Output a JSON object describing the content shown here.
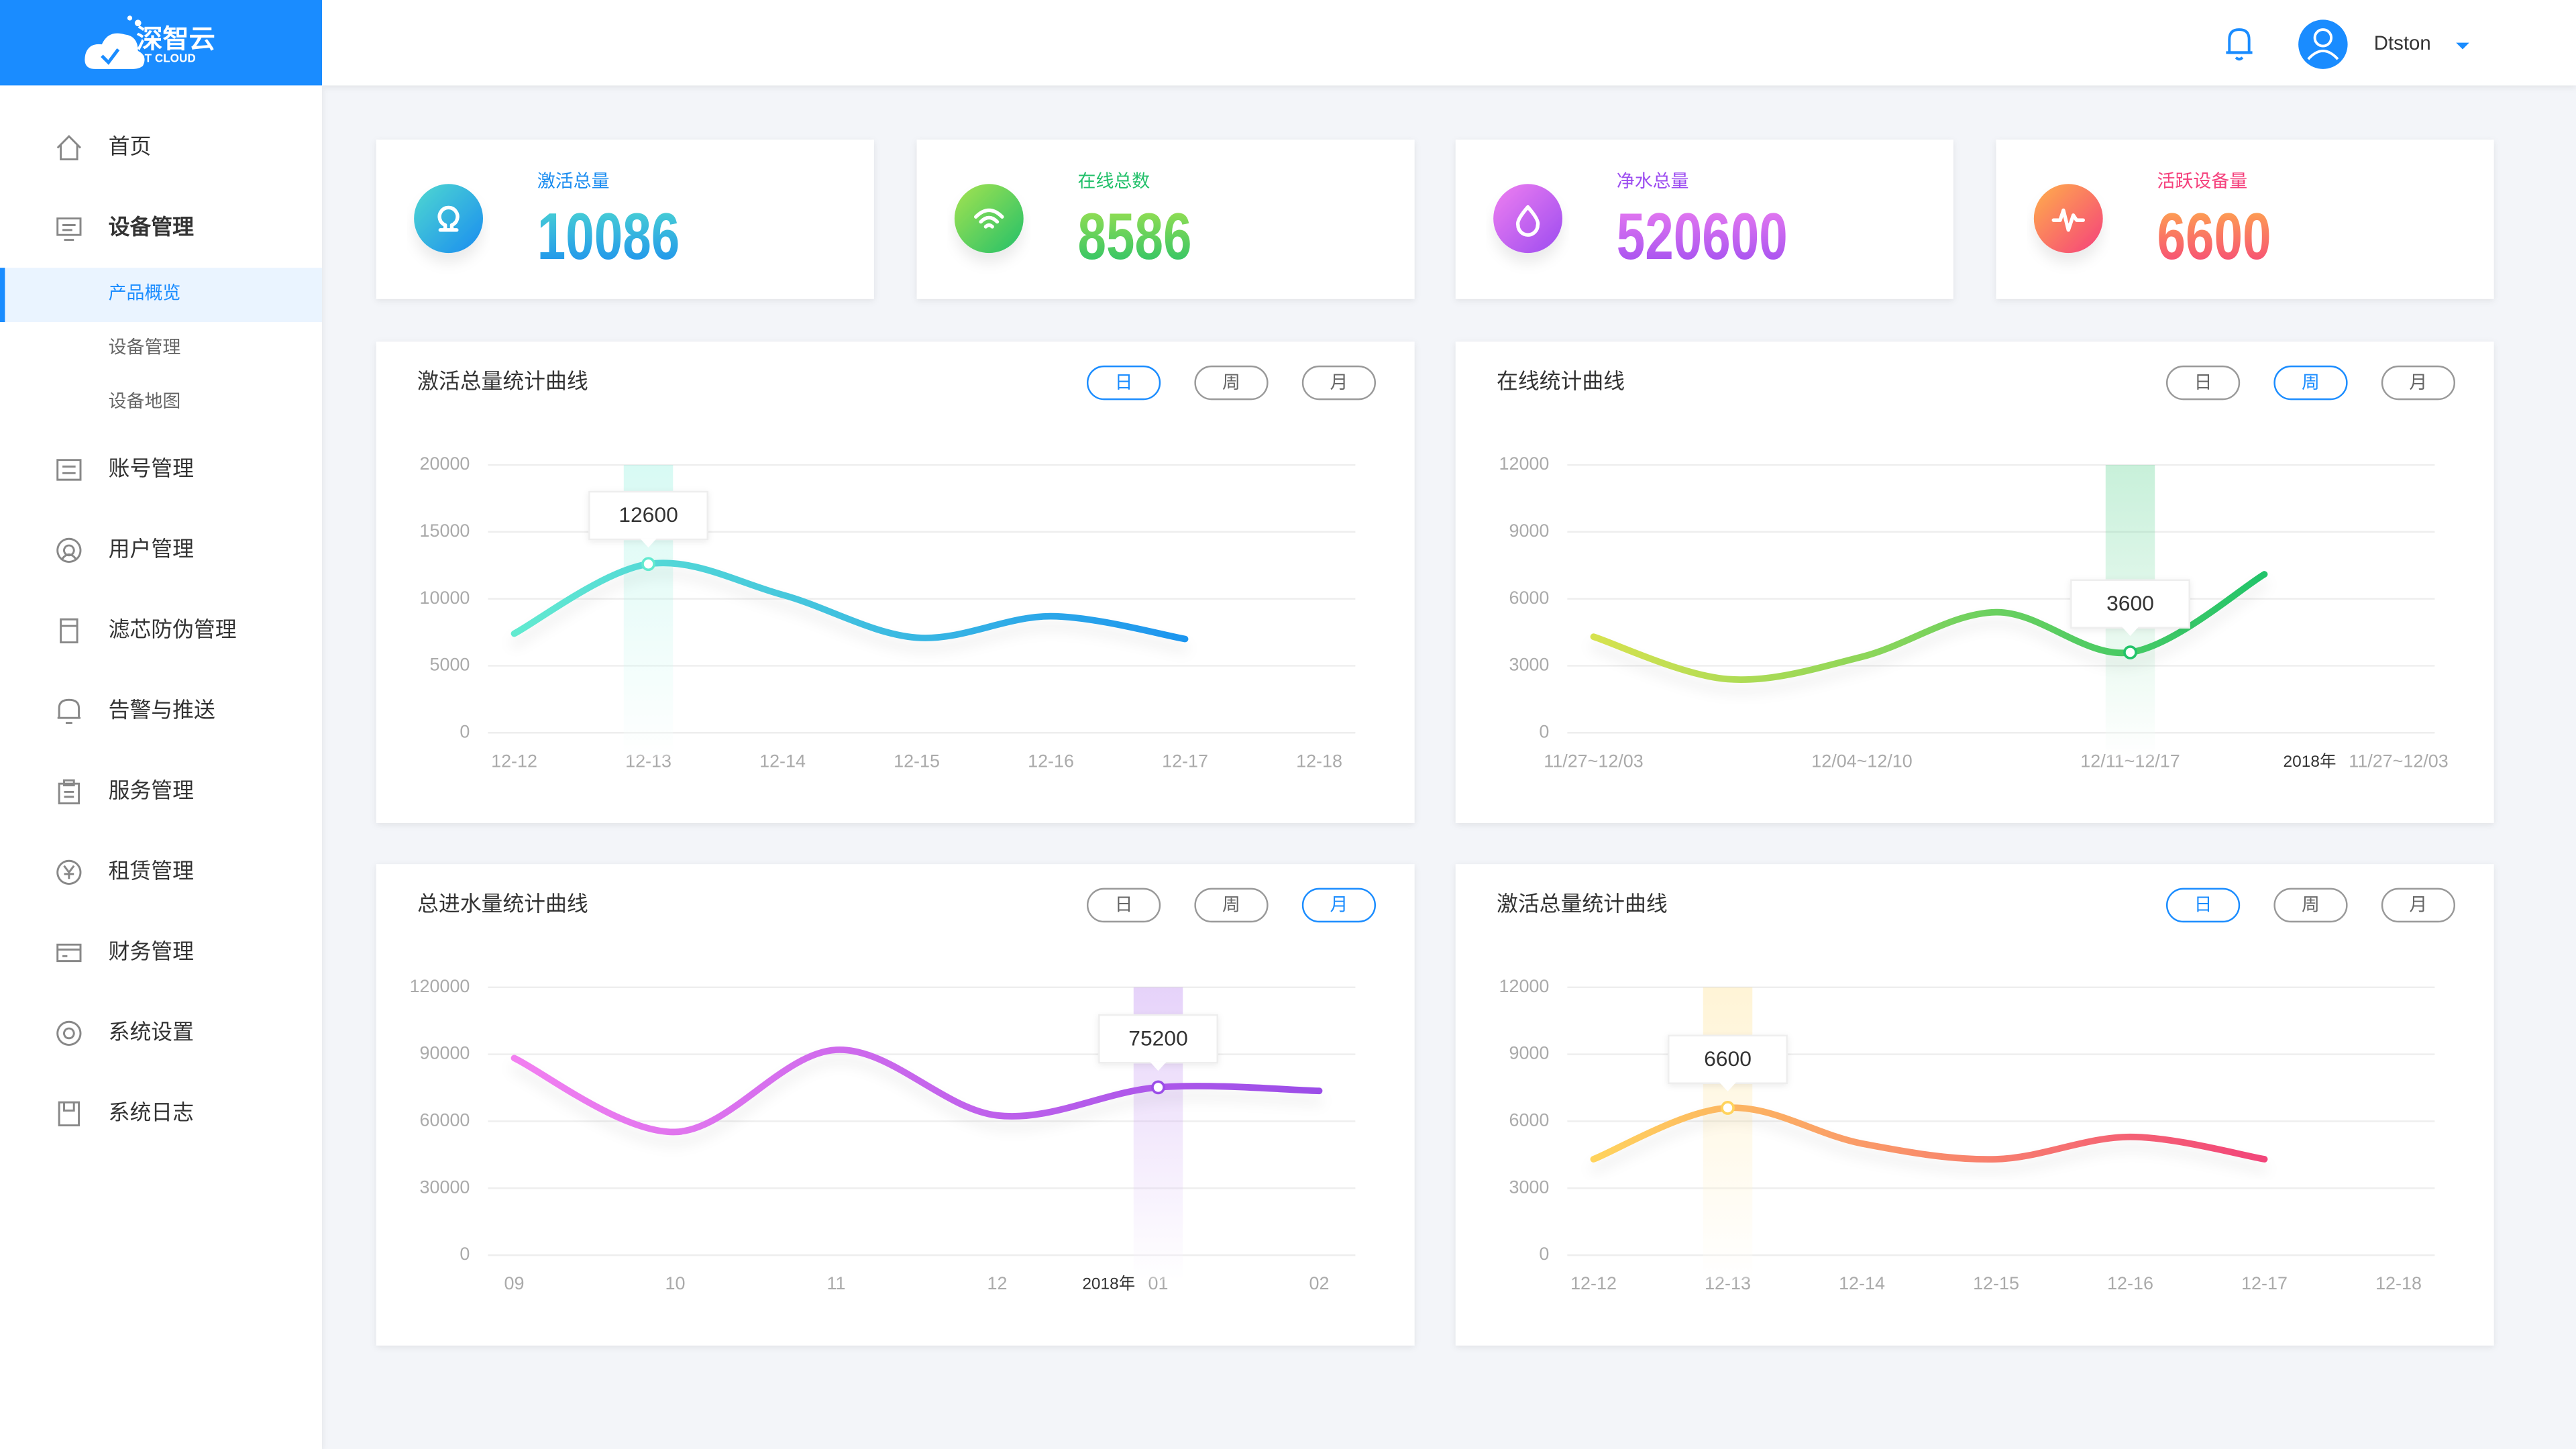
{
  "header": {
    "brand": "深智云",
    "brand_sub": "DT CLOUD",
    "user": "Dtston"
  },
  "sidebar": {
    "items": [
      {
        "label": "首页",
        "icon": "home"
      },
      {
        "label": "设备管理",
        "icon": "monitor"
      },
      {
        "label": "产品概览",
        "sub": true,
        "active": true
      },
      {
        "label": "设备管理",
        "sub": true
      },
      {
        "label": "设备地图",
        "sub": true
      },
      {
        "label": "账号管理",
        "icon": "list"
      },
      {
        "label": "用户管理",
        "icon": "user"
      },
      {
        "label": "滤芯防伪管理",
        "icon": "filter"
      },
      {
        "label": "告警与推送",
        "icon": "bell"
      },
      {
        "label": "服务管理",
        "icon": "clip"
      },
      {
        "label": "租赁管理",
        "icon": "yen"
      },
      {
        "label": "财务管理",
        "icon": "card"
      },
      {
        "label": "系统设置",
        "icon": "gear"
      },
      {
        "label": "系统日志",
        "icon": "save"
      }
    ]
  },
  "stats": [
    {
      "label": "激活总量",
      "value": 10086,
      "colors": [
        "#4fd9d0",
        "#1a8cf0"
      ]
    },
    {
      "label": "在线总数",
      "value": 8586,
      "colors": [
        "#a6e34f",
        "#22c06a"
      ]
    },
    {
      "label": "净水总量",
      "value": 520600,
      "colors": [
        "#ef7ff0",
        "#9c4cf0"
      ]
    },
    {
      "label": "活跃设备量",
      "value": 6600,
      "colors": [
        "#ffb04a",
        "#f5407c"
      ]
    }
  ],
  "tabs": [
    "日",
    "周",
    "月"
  ],
  "charts": [
    {
      "type": "line",
      "title": "激活总量统计曲线",
      "active_tab": 0,
      "colors": [
        "#62ead0",
        "#1d95ef"
      ],
      "categories": [
        "12-12",
        "12-13",
        "12-14",
        "12-15",
        "12-16",
        "12-17",
        "12-18"
      ],
      "values": [
        7400,
        12600,
        10300,
        7100,
        8700,
        7000,
        null
      ],
      "highlight": 1,
      "ylim": [
        0,
        20000
      ],
      "yticks": [
        0,
        5000,
        10000,
        15000,
        20000
      ]
    },
    {
      "type": "line",
      "title": "在线统计曲线",
      "active_tab": 1,
      "colors": [
        "#d6e24f",
        "#22c46a"
      ],
      "categories": [
        "11/27~12/03",
        null,
        "12/04~12/10",
        null,
        "12/11~12/17",
        null,
        "11/27~12/03"
      ],
      "annotation": "2018年",
      "values": [
        4300,
        2400,
        3400,
        5400,
        3600,
        7100,
        null
      ],
      "highlight": 4,
      "ylim": [
        0,
        12000
      ],
      "yticks": [
        0,
        3000,
        6000,
        9000,
        12000
      ]
    },
    {
      "type": "line",
      "title": "总进水量统计曲线",
      "active_tab": 2,
      "colors": [
        "#f27ff0",
        "#9b4de8"
      ],
      "categories": [
        "09",
        "10",
        "11",
        "12",
        "01",
        "02"
      ],
      "annotation": "2018年",
      "values": [
        88300,
        55200,
        92000,
        62600,
        75200,
        73600
      ],
      "highlight": 4,
      "ylim": [
        0,
        120000
      ],
      "yticks": [
        0,
        30000,
        60000,
        90000,
        120000
      ]
    },
    {
      "type": "line",
      "title": "激活总量统计曲线",
      "active_tab": 0,
      "colors": [
        "#ffd35c",
        "#f2457a"
      ],
      "categories": [
        "12-12",
        "12-13",
        "12-14",
        "12-15",
        "12-16",
        "12-17",
        "12-18"
      ],
      "values": [
        4300,
        6600,
        5000,
        4300,
        5300,
        4300,
        null
      ],
      "highlight": 1,
      "ylim": [
        0,
        12000
      ],
      "yticks": [
        0,
        3000,
        6000,
        9000,
        12000
      ]
    }
  ]
}
